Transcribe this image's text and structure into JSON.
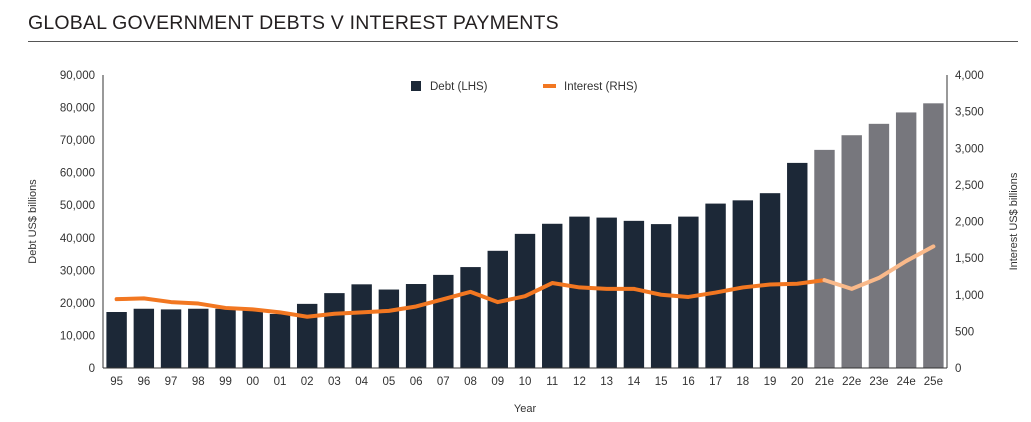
{
  "title": "GLOBAL GOVERNMENT DEBTS V INTEREST PAYMENTS",
  "chart_data": {
    "type": "bar",
    "title": "GLOBAL GOVERNMENT DEBTS V INTEREST PAYMENTS",
    "xlabel": "Year",
    "ylabel": "Debt US$ billions",
    "y2label": "Interest US$ billions",
    "categories": [
      "95",
      "96",
      "97",
      "98",
      "99",
      "00",
      "01",
      "02",
      "03",
      "04",
      "05",
      "06",
      "07",
      "08",
      "09",
      "10",
      "11",
      "12",
      "13",
      "14",
      "15",
      "16",
      "17",
      "18",
      "19",
      "20",
      "21e",
      "22e",
      "23e",
      "24e",
      "25e"
    ],
    "forecast_categories": [
      "21e",
      "22e",
      "23e",
      "24e",
      "25e"
    ],
    "ylim": [
      0,
      90000
    ],
    "y2lim": [
      0,
      4000
    ],
    "yticks": [
      "0",
      "10,000",
      "20,000",
      "30,000",
      "40,000",
      "50,000",
      "60,000",
      "70,000",
      "80,000",
      "90,000"
    ],
    "y2ticks": [
      "0",
      "500",
      "1,000",
      "1,500",
      "2,000",
      "2,500",
      "3,000",
      "3,500",
      "4,000"
    ],
    "grid": false,
    "legend_position": "top-center",
    "colors": {
      "debt": "#1c2837",
      "debt_forecast": "#77777d",
      "interest": "#f27721",
      "interest_forecast": "#f9b98a"
    },
    "series": [
      {
        "name": "Debt (LHS)",
        "axis": "left",
        "type": "bar",
        "values": [
          17200,
          18200,
          18000,
          18200,
          18200,
          17800,
          16600,
          19700,
          23000,
          25700,
          24100,
          25800,
          28600,
          31000,
          36000,
          41200,
          44300,
          46500,
          46200,
          45200,
          44200,
          46500,
          50500,
          51500,
          53700,
          63000,
          67000,
          71500,
          75000,
          78500,
          81300
        ]
      },
      {
        "name": "Interest (RHS)",
        "axis": "right",
        "type": "line",
        "values": [
          940,
          950,
          900,
          880,
          820,
          800,
          760,
          700,
          740,
          760,
          780,
          840,
          940,
          1040,
          900,
          980,
          1160,
          1100,
          1080,
          1080,
          1000,
          970,
          1030,
          1100,
          1140,
          1150,
          1200,
          1080,
          1230,
          1460,
          1660
        ]
      }
    ]
  }
}
